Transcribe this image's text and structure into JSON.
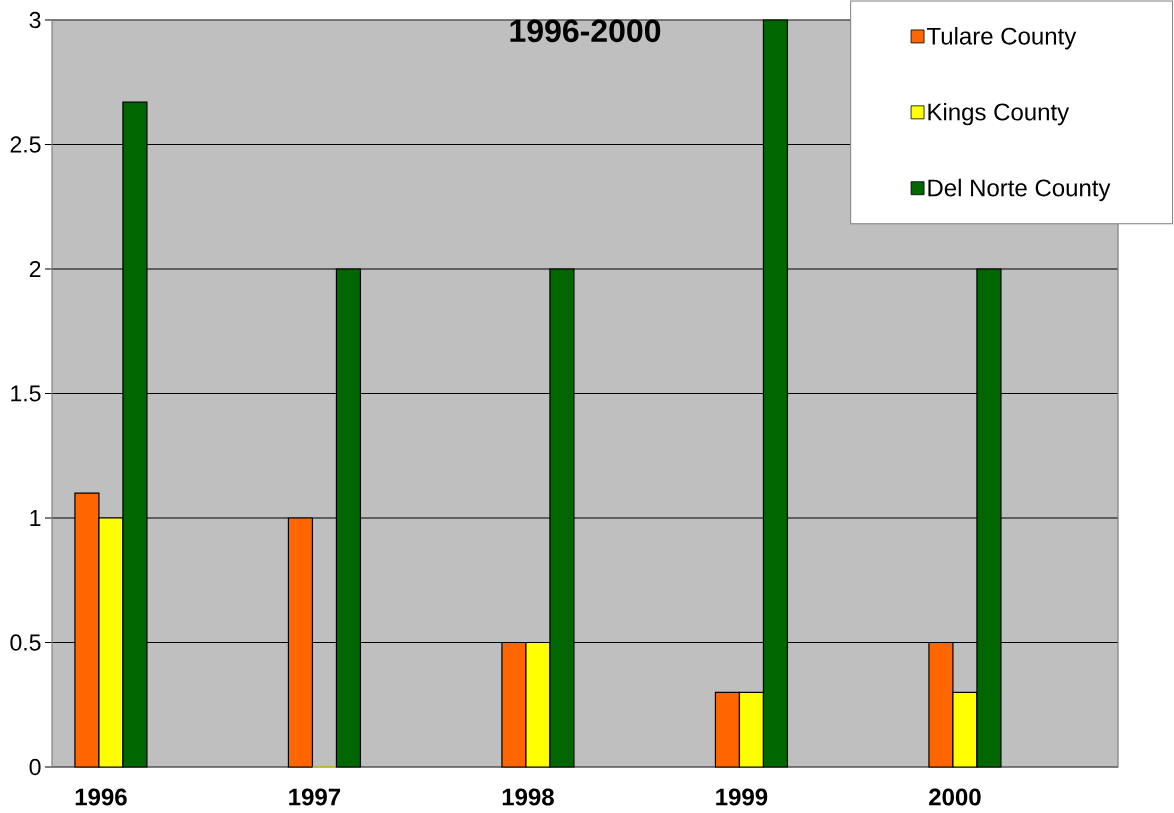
{
  "chart_data": {
    "type": "bar",
    "title": "1996-2000",
    "categories": [
      "1996",
      "1997",
      "1998",
      "1999",
      "2000"
    ],
    "series": [
      {
        "name": "Tulare County",
        "color": "#ff6600",
        "values": [
          1.1,
          1.0,
          0.5,
          0.3,
          0.5
        ]
      },
      {
        "name": "Kings County",
        "color": "#ffff00",
        "values": [
          1.0,
          0,
          0.5,
          0.3,
          0.3
        ]
      },
      {
        "name": "Del Norte County",
        "color": "#006600",
        "values": [
          2.67,
          2.0,
          2.0,
          3.0,
          2.0
        ]
      }
    ],
    "ylim": [
      0,
      3
    ],
    "yticks": [
      0,
      0.5,
      1,
      1.5,
      2,
      2.5,
      3
    ],
    "grid": "y",
    "legend": "top right"
  }
}
